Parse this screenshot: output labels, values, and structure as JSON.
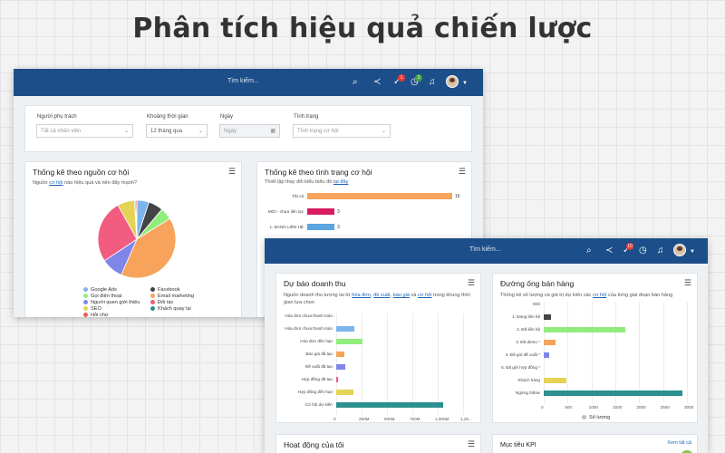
{
  "headline": "Phân tích hiệu quả chiến lược",
  "shot1": {
    "search_placeholder": "Tìm kiếm...",
    "badges": {
      "tasks": "1",
      "timer": "3"
    },
    "filters": {
      "owner": {
        "label": "Người phụ trách",
        "value": "Tất cả nhân viên"
      },
      "period": {
        "label": "Khoảng thời gian",
        "value": "12 tháng qua"
      },
      "date": {
        "label": "Ngày",
        "value": "Ngày"
      },
      "status": {
        "label": "Tình trạng",
        "value": "Tình trạng cơ hội"
      }
    },
    "source_card": {
      "title": "Thống kê theo nguồn cơ hội",
      "subtitle_pre": "Nguồn ",
      "subtitle_link": "cơ hội",
      "subtitle_post": " nào hiệu quả và nên đẩy mạnh?",
      "legend": [
        {
          "name": "Google Ads",
          "color": "#7cb5ec"
        },
        {
          "name": "Facebook",
          "color": "#434348"
        },
        {
          "name": "Gọi điện thoại",
          "color": "#90ed7d"
        },
        {
          "name": "Email marketing",
          "color": "#f7a35c"
        },
        {
          "name": "Người quen giới thiệu",
          "color": "#8085e9"
        },
        {
          "name": "Đối tác",
          "color": "#f15c80"
        },
        {
          "name": "SEO",
          "color": "#e4d354"
        },
        {
          "name": "Khách quay lại",
          "color": "#2b908f"
        },
        {
          "name": "Hỏi chợ",
          "color": "#f45b5b"
        }
      ]
    },
    "status_card": {
      "title": "Thống kê theo tình trạng cơ hội",
      "subtitle_pre": "Thiết lập thay đổi kiểu biểu đồ ",
      "subtitle_link": "tại đây"
    }
  },
  "shot2": {
    "search_placeholder": "Tìm kiếm...",
    "badges": {
      "tasks": "10"
    },
    "revenue_card": {
      "title": "Dự báo doanh thu",
      "subtitle_pre": "Nguồn doanh thu tương lai từ ",
      "links": [
        "hóa đơn",
        "đề xuất",
        "báo giá",
        "cơ hội"
      ],
      "subtitle_sep1": ", ",
      "subtitle_sep2": ", ",
      "subtitle_sep3": " và ",
      "subtitle_post": " trong khung thời gian lựa chọn"
    },
    "pipeline_card": {
      "title": "Đường ống bán hàng",
      "subtitle_pre": "Thống kê số lượng và giá trị dự kiến các ",
      "subtitle_link": "cơ hội",
      "subtitle_post": " của từng giai đoạn bán hàng",
      "legend_label": "Số lượng"
    },
    "activity_card": {
      "title": "Hoạt động của tôi"
    },
    "kpi_card": {
      "title": "Mục tiêu KPI",
      "link": "Xem tất cả"
    }
  },
  "chart_data": [
    {
      "type": "pie",
      "categories": [
        "Google Ads",
        "Facebook",
        "Gọi điện thoại",
        "Email marketing",
        "Người quen giới thiệu",
        "Đối tác",
        "SEO",
        "Khách quay lại",
        "Hỏi chợ"
      ],
      "values": [
        5,
        6,
        5,
        40,
        9,
        26,
        7,
        0.5,
        0.5
      ]
    },
    {
      "type": "bar",
      "orientation": "horizontal",
      "categories": [
        "Tất cả",
        "MỚI - chưa liên lạc",
        "1. ĐANG LIÊN HỆ"
      ],
      "values": [
        16,
        3,
        3
      ],
      "colors": [
        "#f7a35c",
        "#d81b60",
        "#5ba6e0"
      ],
      "value_labels": [
        "16",
        "3",
        "3"
      ],
      "xlim": [
        0,
        16
      ]
    },
    {
      "type": "bar",
      "orientation": "horizontal",
      "categories": [
        "Hóa đơn chưa thanh toán",
        "Hóa đơn chưa thanh toán",
        "Hóa đơn đến hạn",
        "Báo giá đã tạo",
        "Đề xuất đã tạo",
        "Hợp đồng đã tạo",
        "Hợp đồng đến hạn",
        "Cơ hội dự kiến"
      ],
      "values": [
        0,
        180,
        260,
        80,
        90,
        20,
        170,
        1050
      ],
      "colors": [
        "#7cb5ec",
        "#7cb5ec",
        "#90ed7d",
        "#f7a35c",
        "#8085e9",
        "#f15c80",
        "#e4d354",
        "#2b908f"
      ],
      "x_ticks": [
        "0",
        "250M",
        "500M",
        "750M",
        "1,000M",
        "1,25..."
      ],
      "xlim": [
        0,
        1250
      ]
    },
    {
      "type": "bar",
      "orientation": "horizontal",
      "categories": [
        "Mới",
        "1. Đang liên hệ",
        "2. Đã liên hệ",
        "3. Đã demo *",
        "4. Đã gửi đề xuất *",
        "5. Đã gửi hợp đồng *",
        "Khách hàng",
        "Ngừng follow"
      ],
      "values": [
        0,
        150,
        1700,
        250,
        120,
        0,
        480,
        2900
      ],
      "colors": [
        "#434348",
        "#434348",
        "#90ed7d",
        "#f7a35c",
        "#8085e9",
        "#f15c80",
        "#e4d354",
        "#2b908f"
      ],
      "x_ticks": [
        "0",
        "500",
        "1000",
        "1500",
        "2000",
        "2500",
        "3000"
      ],
      "xlim": [
        0,
        3000
      ],
      "series_name": "Số lượng"
    }
  ]
}
